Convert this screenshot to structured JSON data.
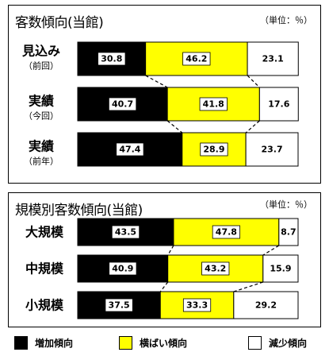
{
  "colors": {
    "increase": "#000000",
    "flat": "#ffff00",
    "decrease": "#ffffff"
  },
  "legend": [
    {
      "label": "増加傾向",
      "key": "increase"
    },
    {
      "label": "横ばい傾向",
      "key": "flat"
    },
    {
      "label": "減少傾向",
      "key": "decrease"
    }
  ],
  "chart_data": [
    {
      "type": "bar",
      "stacked": true,
      "orientation": "horizontal",
      "title": "客数傾向(当館)",
      "unit_label": "（単位：％）",
      "xlim": [
        0,
        100
      ],
      "categories": [
        {
          "label": "見込み",
          "sublabel": "（前回）"
        },
        {
          "label": "実績",
          "sublabel": "（今回）"
        },
        {
          "label": "実績",
          "sublabel": "（前年）"
        }
      ],
      "series": [
        {
          "name": "増加傾向",
          "values": [
            30.8,
            40.7,
            47.4
          ],
          "labels": [
            "30.8",
            "40.7",
            "47.4"
          ]
        },
        {
          "name": "横ばい傾向",
          "values": [
            46.2,
            41.8,
            28.9
          ],
          "labels": [
            "46.2",
            "41.8",
            "28.9"
          ]
        },
        {
          "name": "減少傾向",
          "values": [
            23.1,
            17.6,
            23.7
          ],
          "labels": [
            "23.1",
            "17.6",
            "23.7"
          ]
        }
      ]
    },
    {
      "type": "bar",
      "stacked": true,
      "orientation": "horizontal",
      "title": "規模別客数傾向(当館)",
      "unit_label": "（単位：％）",
      "xlim": [
        0,
        100
      ],
      "categories": [
        {
          "label": "大規模"
        },
        {
          "label": "中規模"
        },
        {
          "label": "小規模"
        }
      ],
      "series": [
        {
          "name": "増加傾向",
          "values": [
            43.5,
            40.9,
            37.5
          ],
          "labels": [
            "43.5",
            "40.9",
            "37.5"
          ]
        },
        {
          "name": "横ばい傾向",
          "values": [
            47.8,
            43.2,
            33.3
          ],
          "labels": [
            "47.8",
            "43.2",
            "33.3"
          ]
        },
        {
          "name": "減少傾向",
          "values": [
            8.7,
            15.9,
            29.2
          ],
          "labels": [
            "8.7",
            "15.9",
            "29.2"
          ]
        }
      ]
    }
  ]
}
